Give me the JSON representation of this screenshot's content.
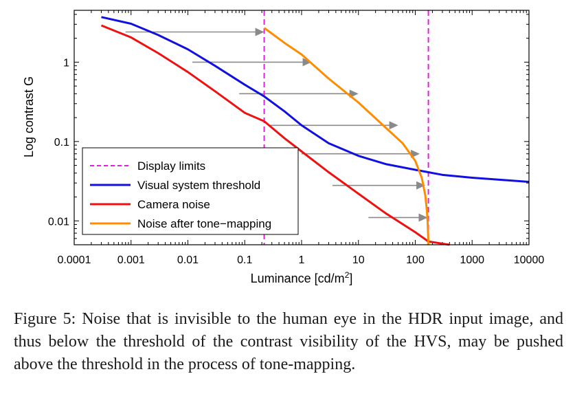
{
  "chart_data": {
    "type": "line",
    "xscale": "log",
    "yscale": "log",
    "xlim": [
      0.0001,
      10000
    ],
    "ylim": [
      0.005,
      4.5
    ],
    "xlabel": "Luminance [cd/m",
    "xlabel_sup": "2",
    "xlabel_end": "]",
    "ylabel": "Log contrast G",
    "x_ticks": [
      {
        "value": 0.0001,
        "label": "0.0001"
      },
      {
        "value": 0.001,
        "label": "0.001"
      },
      {
        "value": 0.01,
        "label": "0.01"
      },
      {
        "value": 0.1,
        "label": "0.1"
      },
      {
        "value": 1,
        "label": "1"
      },
      {
        "value": 10,
        "label": "10"
      },
      {
        "value": 100,
        "label": "100"
      },
      {
        "value": 1000,
        "label": "1000"
      },
      {
        "value": 10000,
        "label": "10000"
      }
    ],
    "y_ticks": [
      {
        "value": 0.01,
        "label": "0.01"
      },
      {
        "value": 0.1,
        "label": "0.1"
      },
      {
        "value": 1,
        "label": "1"
      }
    ],
    "display_limits": [
      0.22,
      170
    ],
    "series": [
      {
        "name": "Display limits",
        "color": "#e020e0",
        "dashed": true,
        "x": [],
        "y": []
      },
      {
        "name": "Visual system threshold",
        "color": "#1010e0",
        "x": [
          0.0003,
          0.001,
          0.003,
          0.01,
          0.03,
          0.1,
          0.22,
          0.5,
          1,
          3,
          10,
          30,
          100,
          170,
          300,
          1000,
          3000,
          10000
        ],
        "y": [
          3.7,
          3.05,
          2.2,
          1.45,
          0.9,
          0.52,
          0.37,
          0.24,
          0.16,
          0.095,
          0.066,
          0.052,
          0.044,
          0.041,
          0.038,
          0.035,
          0.033,
          0.031
        ]
      },
      {
        "name": "Camera noise",
        "color": "#f01010",
        "x": [
          0.0003,
          0.001,
          0.003,
          0.01,
          0.03,
          0.1,
          0.22,
          0.5,
          1,
          3,
          10,
          30,
          100,
          170,
          400
        ],
        "y": [
          2.9,
          2.05,
          1.3,
          0.75,
          0.43,
          0.23,
          0.18,
          0.11,
          0.075,
          0.041,
          0.022,
          0.0125,
          0.0072,
          0.0055,
          0.0036
        ]
      },
      {
        "name": "Noise after tone−mapping",
        "color": "#ff8c00",
        "x": [
          0.22,
          0.5,
          1,
          3,
          10,
          30,
          60,
          100,
          130,
          150,
          160,
          165,
          168,
          170,
          170
        ],
        "y": [
          2.7,
          1.75,
          1.25,
          0.62,
          0.31,
          0.15,
          0.095,
          0.057,
          0.035,
          0.021,
          0.0135,
          0.0095,
          0.0068,
          0.0055,
          0.005
        ]
      }
    ],
    "arrows": [
      {
        "from_x": 0.0008,
        "to_x": 0.22,
        "y": 2.4
      },
      {
        "from_x": 0.012,
        "to_x": 1.5,
        "y": 1.0
      },
      {
        "from_x": 0.08,
        "to_x": 10,
        "y": 0.4
      },
      {
        "from_x": 0.28,
        "to_x": 50,
        "y": 0.16
      },
      {
        "from_x": 1.0,
        "to_x": 120,
        "y": 0.07
      },
      {
        "from_x": 3.5,
        "to_x": 150,
        "y": 0.028
      },
      {
        "from_x": 15,
        "to_x": 165,
        "y": 0.011
      }
    ],
    "legend": {
      "position": "bottom-left",
      "entries": [
        "Display limits",
        "Visual system threshold",
        "Camera noise",
        "Noise after tone−mapping"
      ]
    }
  },
  "caption": "Figure 5:  Noise that is invisible to the human eye in the HDR input image, and thus below the threshold of the contrast visibility of the HVS, may be pushed above the threshold in the process of tone-mapping."
}
